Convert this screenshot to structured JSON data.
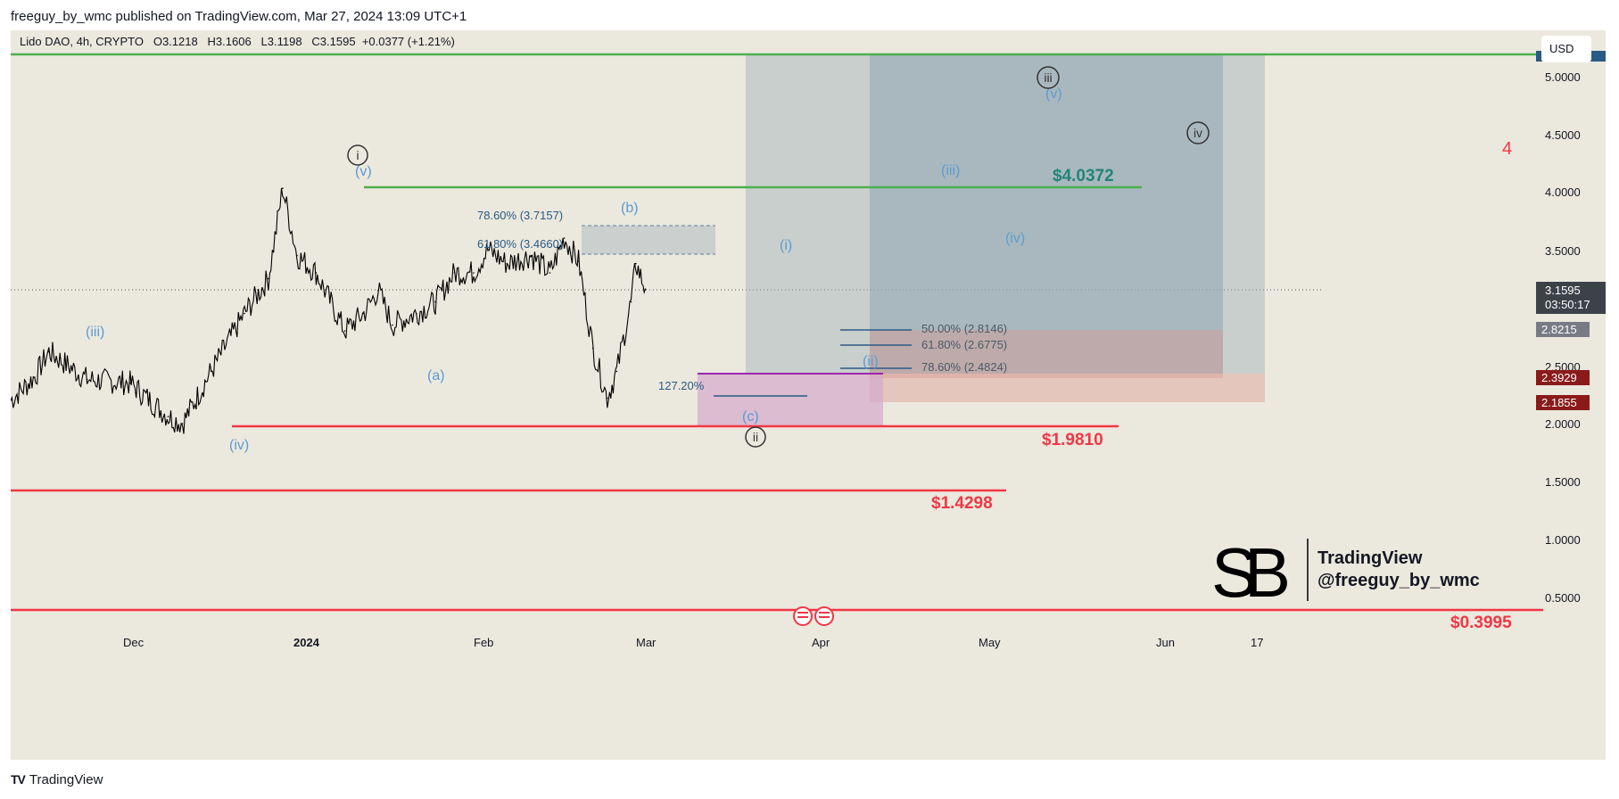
{
  "publish_line": "freeguy_by_wmc published on TradingView.com, Mar 27, 2024 13:09 UTC+1",
  "legend": {
    "symbol": "Lido DAO, 4h, CRYPTO",
    "open": "O3.1218",
    "high": "H3.1606",
    "low": "L3.1198",
    "close": "C3.1595",
    "change": "+0.0377 (+1.21%)"
  },
  "currency_button": "USD",
  "footer_brand": "TradingView",
  "watermark": {
    "line1": "TradingView",
    "line2": "@freeguy_by_wmc"
  },
  "colors": {
    "background": "#ebe8dd",
    "candles": "#000000",
    "support_red": "#f23645",
    "target_green": "#4caf50",
    "wave_blue": "#5b9bd5",
    "position_box": "#9aaeb8",
    "fib_pink": "#d8a9c8"
  },
  "price_scale": {
    "ticks": [
      "5.0000",
      "4.5000",
      "4.0000",
      "3.5000",
      "3.0000",
      "2.5000",
      "2.0000",
      "1.5000",
      "1.0000",
      "0.5000"
    ],
    "current_price": "3.1595",
    "countdown": "03:50:17",
    "tag_2_8215": "2.8215",
    "tag_2_3929": "2.3929",
    "tag_2_1855": "2.1855"
  },
  "time_scale": {
    "ticks": [
      "Dec",
      "2024",
      "Feb",
      "Mar",
      "Apr",
      "May",
      "Jun",
      "17"
    ]
  },
  "chart_data": {
    "type": "line",
    "title": "Lido DAO, 4h, CRYPTO",
    "ylim": [
      0.3,
      5.2
    ],
    "y_scale": "linear",
    "grid": false,
    "x": [
      "2023-11-15",
      "2023-11-20",
      "2023-11-23",
      "2023-12-01",
      "2023-12-10",
      "2023-12-18",
      "2023-12-21",
      "2023-12-27",
      "2024-01-03",
      "2024-01-08",
      "2024-01-11",
      "2024-01-14",
      "2024-01-18",
      "2024-01-24",
      "2024-01-28",
      "2024-01-31",
      "2024-02-03",
      "2024-02-08",
      "2024-02-12",
      "2024-02-16",
      "2024-02-20",
      "2024-02-23",
      "2024-02-27",
      "2024-03-03",
      "2024-03-07",
      "2024-03-10",
      "2024-03-13",
      "2024-03-16",
      "2024-03-19",
      "2024-03-21",
      "2024-03-24",
      "2024-03-25",
      "2024-03-27"
    ],
    "series": [
      {
        "values": [
          2.2,
          2.4,
          2.62,
          2.38,
          2.35,
          2.06,
          2.0,
          2.45,
          2.95,
          3.25,
          4.03,
          3.45,
          3.3,
          2.8,
          2.95,
          3.15,
          2.85,
          2.95,
          3.05,
          3.3,
          3.3,
          3.5,
          3.38,
          3.45,
          3.3,
          3.6,
          3.4,
          2.65,
          2.22,
          2.45,
          3.05,
          3.38,
          3.16
        ]
      }
    ],
    "horizontal_levels": [
      {
        "price": "$4.0372",
        "color": "#4caf50"
      },
      {
        "price": "$1.9810",
        "color": "#f23645"
      },
      {
        "price": "$1.4298",
        "color": "#f23645"
      },
      {
        "price": "$0.3995",
        "color": "#f23645"
      }
    ],
    "fib_labels": [
      "78.60% (3.7157)",
      "61.80% (3.4660)",
      "50.00% (2.8146)",
      "61.80% (2.6775)",
      "78.60% (2.4824)",
      "127.20%"
    ],
    "wave_labels_blue": [
      "(iii)",
      "(iv)",
      "(v)",
      "(a)",
      "(b)",
      "(c)",
      "(i)",
      "(ii)",
      "(iii)",
      "(iv)",
      "(v)"
    ],
    "wave_labels_circled": [
      "i",
      "ii",
      "iii",
      "iv"
    ],
    "annotation_red": "4"
  }
}
